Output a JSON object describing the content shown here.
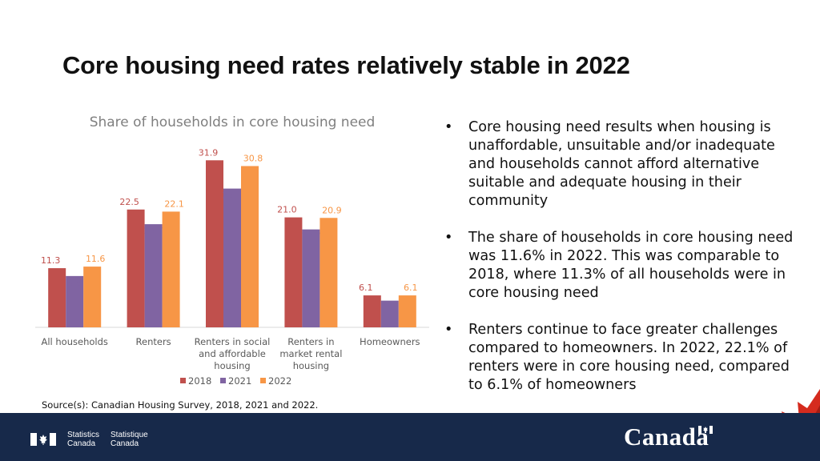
{
  "header": {
    "title": "Core housing need rates relatively stable in 2022"
  },
  "chart_data": {
    "type": "bar",
    "title": "Share of households in core housing need",
    "categories": [
      [
        "All households"
      ],
      [
        "Renters"
      ],
      [
        "Renters in social",
        "and affordable",
        "housing"
      ],
      [
        "Renters in",
        "market rental",
        "housing"
      ],
      [
        "Homeowners"
      ]
    ],
    "series": [
      {
        "name": "2018",
        "color": "#c0504d",
        "values": [
          11.3,
          22.5,
          31.9,
          21.0,
          6.1
        ]
      },
      {
        "name": "2021",
        "color": "#8064a2",
        "values": [
          9.8,
          19.7,
          26.5,
          18.7,
          5.1
        ]
      },
      {
        "name": "2022",
        "color": "#f79646",
        "values": [
          11.6,
          22.1,
          30.8,
          20.9,
          6.1
        ]
      }
    ],
    "ylim": [
      0,
      35
    ],
    "grid": false,
    "legend": "bottom",
    "xlabel": "",
    "ylabel": ""
  },
  "bullets": [
    "Core housing need results when housing is unaffordable, unsuitable and/or inadequate and households cannot afford alternative suitable and adequate housing in their community",
    "The share of households in core housing need was 11.6% in 2022. This was comparable to 2018, where 11.3% of all households were in core housing need",
    "Renters continue to face greater challenges compared to homeowners. In 2022, 22.1% of renters were in core housing need, compared to 6.1% of homeowners"
  ],
  "bullet_symbol": "•",
  "source": "Source(s): Canadian Housing Survey, 2018, 2021 and 2022.",
  "footer": {
    "statcan_en": [
      "Statistics",
      "Canada"
    ],
    "statcan_fr": [
      "Statistique",
      "Canada"
    ],
    "wordmark": "Canada",
    "background": "#17294a",
    "flag_red": "#d52b1e"
  }
}
